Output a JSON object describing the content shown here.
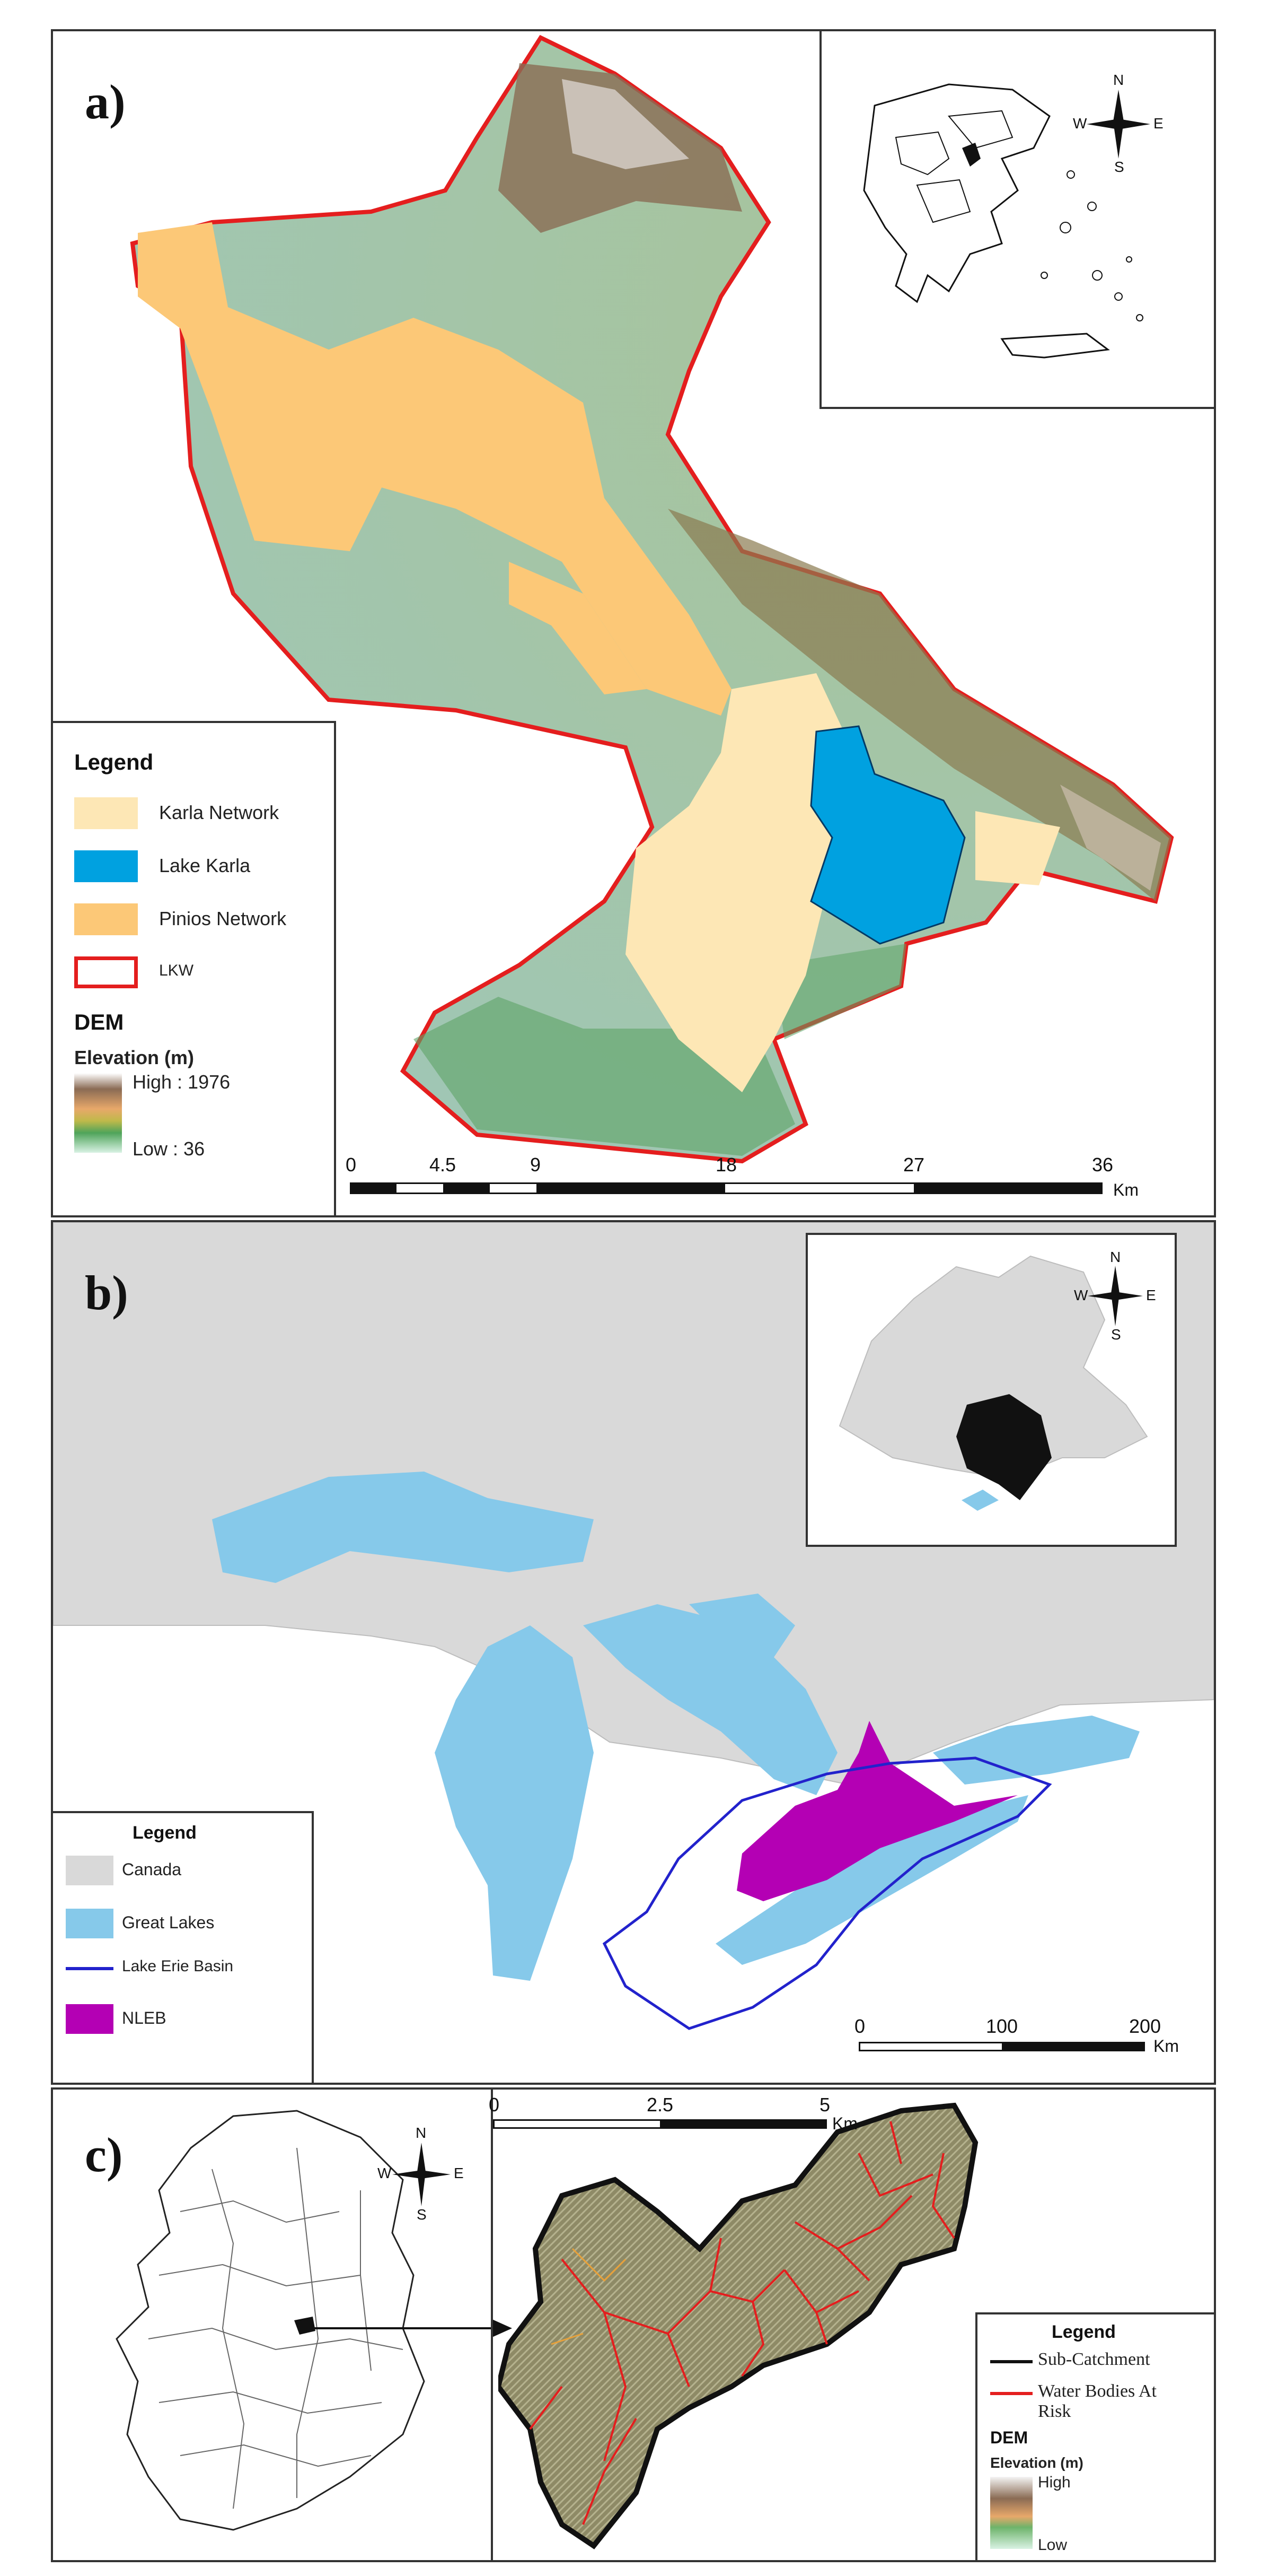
{
  "panel_a": {
    "letter": "a)",
    "legend": {
      "title": "Legend",
      "items": [
        {
          "label": "Karla Network",
          "color": "#fde7b5"
        },
        {
          "label": "Lake Karla",
          "color": "#00a1e0"
        },
        {
          "label": "Pinios Network",
          "color": "#fcc877"
        },
        {
          "label": "LKW",
          "color": "#e41e1e"
        }
      ],
      "dem_title": "DEM",
      "elev_title": "Elevation (m)",
      "high": "High : 1976",
      "low": "Low : 36"
    },
    "scale": {
      "ticks": [
        "0",
        "4.5",
        "9",
        "18",
        "27",
        "36"
      ],
      "unit": "Km"
    },
    "compass": {
      "n": "N",
      "s": "S",
      "e": "E",
      "w": "W"
    }
  },
  "panel_b": {
    "letter": "b)",
    "legend": {
      "title": "Legend",
      "items": [
        {
          "label": "Canada",
          "color": "#d9d9d9"
        },
        {
          "label": "Great Lakes",
          "color": "#86c9ea"
        },
        {
          "label": "Lake Erie Basin",
          "color": "#2222cc"
        },
        {
          "label": "NLEB",
          "color": "#b400b4"
        }
      ]
    },
    "scale": {
      "ticks": [
        "0",
        "100",
        "200"
      ],
      "unit": "Km"
    },
    "compass": {
      "n": "N",
      "s": "S",
      "e": "E",
      "w": "W"
    }
  },
  "panel_c": {
    "letter": "c)",
    "legend": {
      "title": "Legend",
      "items": [
        {
          "label": "Sub-Catchment",
          "color": "#111111"
        },
        {
          "label": "Water Bodies At Risk",
          "color": "#e41e1e"
        }
      ],
      "dem_title": "DEM",
      "elev_title": "Elevation (m)",
      "high": "High",
      "low": "Low"
    },
    "scale": {
      "ticks": [
        "0",
        "2.5",
        "5"
      ],
      "unit": "Km"
    },
    "compass": {
      "n": "N",
      "s": "S",
      "e": "E",
      "w": "W"
    }
  }
}
